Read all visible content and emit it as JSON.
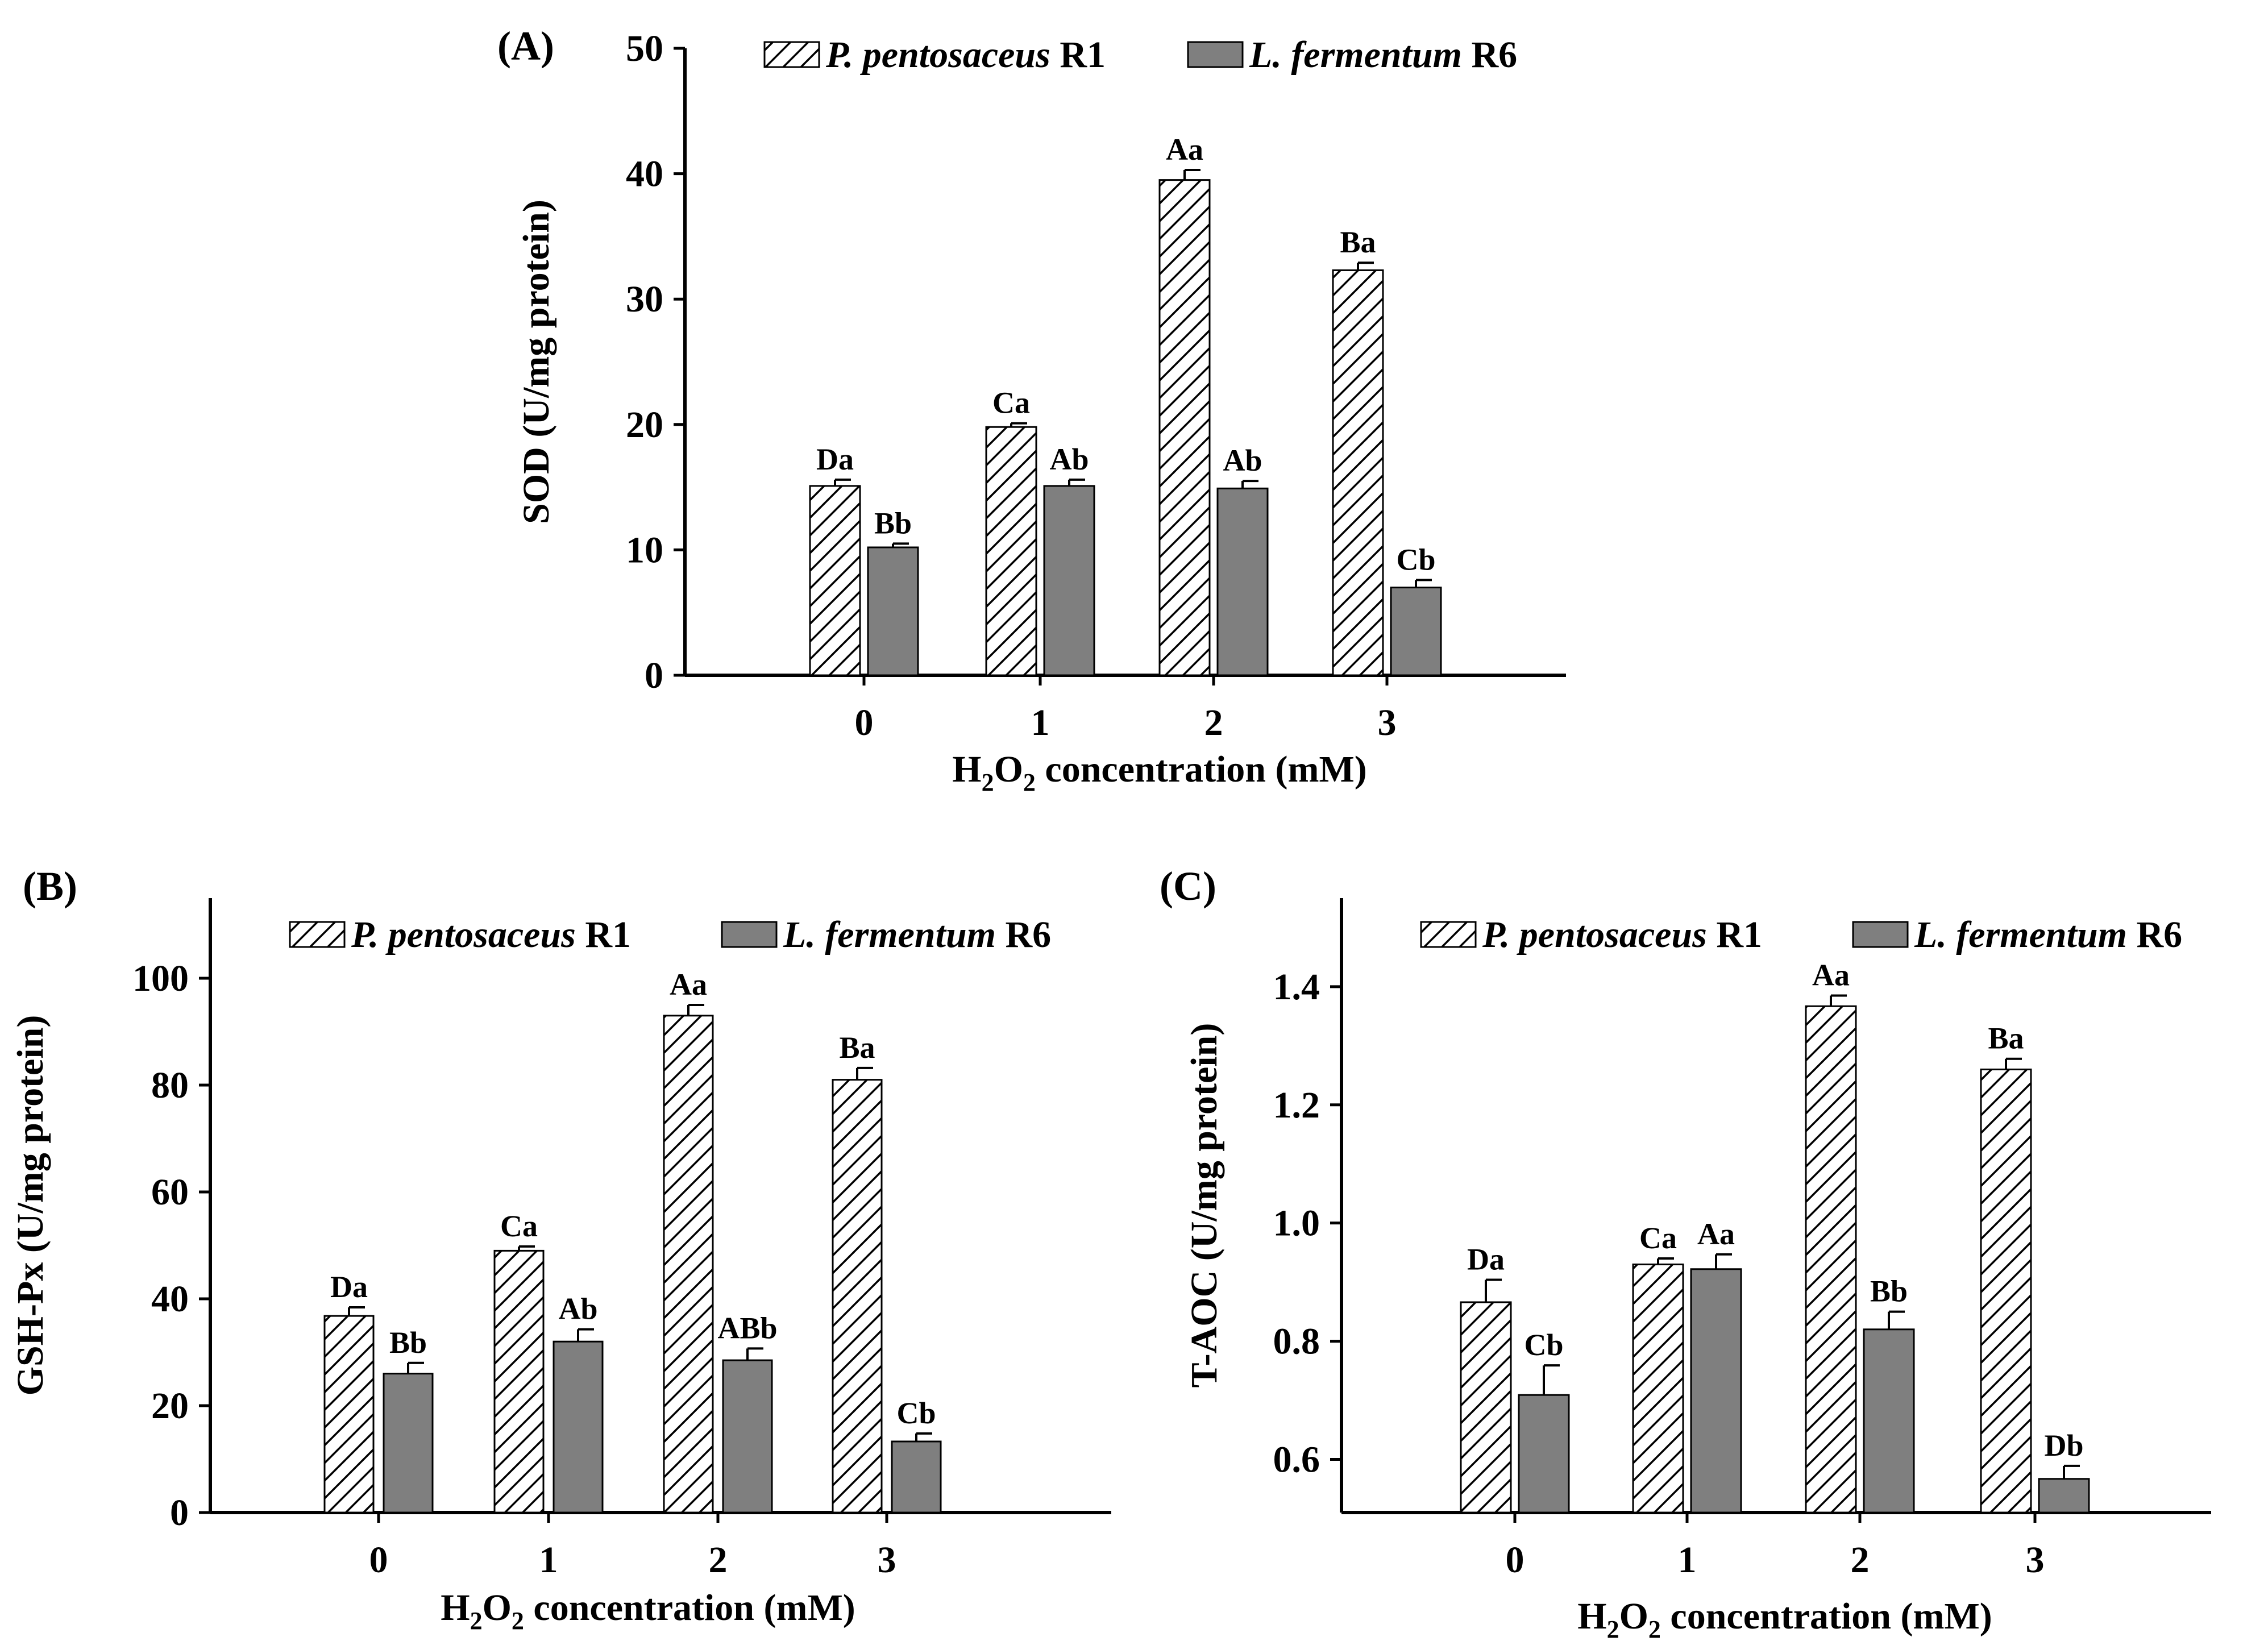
{
  "colors": {
    "r1_fill": "#ffffff",
    "r6_fill": "#7f7f7f",
    "stroke": "#000000"
  },
  "chart_data": [
    {
      "type": "bar",
      "panel": "(A)",
      "categories": [
        "0",
        "1",
        "2",
        "3"
      ],
      "xlabel": "concentration (mM)",
      "xlabel_chem": {
        "H": "H",
        "sub1": "2",
        "O": "O",
        "sub2": "2"
      },
      "ylabel": "SOD (U/mg protein)",
      "ylim": [
        0,
        50
      ],
      "yticks": [
        "0",
        "10",
        "20",
        "30",
        "40",
        "50"
      ],
      "legend_position": "top",
      "series": [
        {
          "name_italic": "P. pentosaceus",
          "name_suffix": "R1",
          "values": [
            15.1,
            19.8,
            39.5,
            32.3
          ],
          "errors": [
            0.5,
            0.3,
            0.8,
            0.6
          ],
          "letters": [
            "Da",
            "Ca",
            "Aa",
            "Ba"
          ]
        },
        {
          "name_italic": "L. fermentum",
          "name_suffix": "R6",
          "values": [
            10.2,
            15.1,
            14.9,
            7.0
          ],
          "errors": [
            0.3,
            0.5,
            0.6,
            0.6
          ],
          "letters": [
            "Bb",
            "Ab",
            "Ab",
            "Cb"
          ]
        }
      ]
    },
    {
      "type": "bar",
      "panel": "(B)",
      "categories": [
        "0",
        "1",
        "2",
        "3"
      ],
      "xlabel": "concentration (mM)",
      "xlabel_chem": {
        "H": "H",
        "sub1": "2",
        "O": "O",
        "sub2": "2"
      },
      "ylabel": "GSH-Px (U/mg protein)",
      "ylim": [
        0,
        115
      ],
      "yticks": [
        "0",
        "20",
        "40",
        "60",
        "80",
        "100"
      ],
      "legend_position": "top",
      "series": [
        {
          "name_italic": "P. pentosaceus",
          "name_suffix": "R1",
          "values": [
            36.8,
            49.0,
            93.0,
            81.0
          ],
          "errors": [
            1.6,
            0.8,
            2.0,
            2.2
          ],
          "letters": [
            "Da",
            "Ca",
            "Aa",
            "Ba"
          ]
        },
        {
          "name_italic": "L. fermentum",
          "name_suffix": "R6",
          "values": [
            26.0,
            32.0,
            28.5,
            13.3
          ],
          "errors": [
            2.0,
            2.3,
            2.2,
            1.5
          ],
          "letters": [
            "Bb",
            "Ab",
            "ABb",
            "Cb"
          ]
        }
      ]
    },
    {
      "type": "bar",
      "panel": "(C)",
      "categories": [
        "0",
        "1",
        "2",
        "3"
      ],
      "xlabel": "concentration (mM)",
      "xlabel_chem": {
        "H": "H",
        "sub1": "2",
        "O": "O",
        "sub2": "2"
      },
      "ylabel": "T-AOC (U/mg protein)",
      "ylim": [
        0.51,
        1.55
      ],
      "yticks": [
        "0.6",
        "0.8",
        "1.0",
        "1.2",
        "1.4"
      ],
      "legend_position": "top",
      "series": [
        {
          "name_italic": "P. pentosaceus",
          "name_suffix": "R1",
          "values": [
            0.866,
            0.93,
            1.367,
            1.26
          ],
          "errors": [
            0.038,
            0.01,
            0.018,
            0.018
          ],
          "letters": [
            "Da",
            "Ca",
            "Aa",
            "Ba"
          ]
        },
        {
          "name_italic": "L. fermentum",
          "name_suffix": "R6",
          "values": [
            0.709,
            0.922,
            0.82,
            0.567
          ],
          "errors": [
            0.05,
            0.025,
            0.03,
            0.022
          ],
          "letters": [
            "Cb",
            "Aa",
            "Bb",
            "Db"
          ]
        }
      ]
    }
  ]
}
